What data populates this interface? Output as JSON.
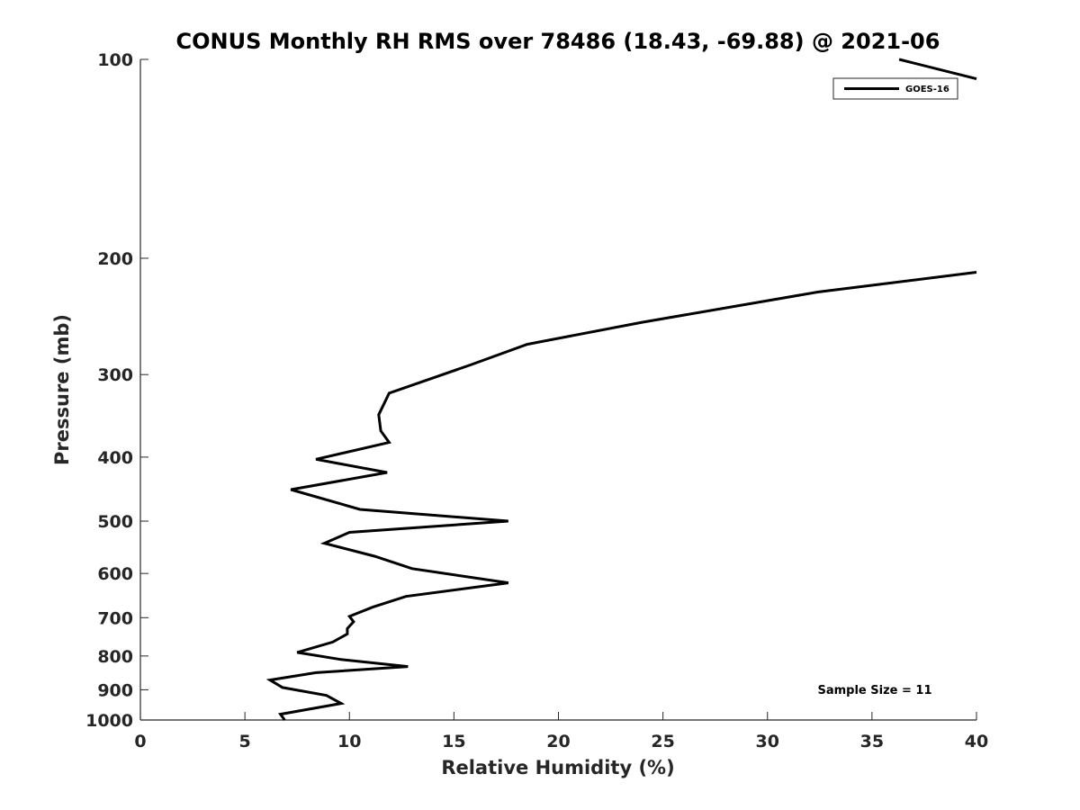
{
  "chart_data": {
    "type": "line",
    "title": "CONUS Monthly RH RMS over 78486 (18.43, -69.88) @ 2021-06",
    "xlabel": "Relative Humidity (%)",
    "ylabel": "Pressure (mb)",
    "xlim": [
      0,
      40
    ],
    "ylim": [
      100,
      1000
    ],
    "y_scale": "log",
    "y_reversed": true,
    "x_ticks": [
      "0",
      "5",
      "10",
      "15",
      "20",
      "25",
      "30",
      "35",
      "40"
    ],
    "y_ticks": [
      "100",
      "200",
      "300",
      "400",
      "500",
      "600",
      "700",
      "800",
      "900",
      "1000"
    ],
    "grid": false,
    "legend": {
      "placement": "top-right",
      "entries": [
        "GOES-16"
      ]
    },
    "annotation": "Sample Size = 11",
    "series": [
      {
        "name": "GOES-16",
        "color": "#000000",
        "segments": [
          {
            "x": [
              36.3,
              40.0
            ],
            "y": [
              100,
              107
            ]
          },
          {
            "x": [
              40.0,
              32.4,
              24.0,
              18.5,
              15.8,
              11.9,
              11.4,
              11.5,
              11.9,
              8.4,
              11.8,
              7.2,
              10.5,
              17.6,
              10.0,
              8.8,
              11.2,
              13.0,
              17.6,
              12.7,
              11.1,
              10.0,
              10.2,
              9.9,
              9.9,
              9.2,
              7.5,
              9.6,
              12.8,
              8.4,
              6.2,
              6.8,
              8.9,
              9.6,
              6.7,
              6.9
            ],
            "y": [
              210,
              225,
              250,
              270,
              290,
              320,
              345,
              365,
              380,
              403,
              422,
              448,
              480,
              500,
              520,
              540,
              565,
              590,
              620,
              650,
              675,
              697,
              710,
              727,
              741,
              762,
              790,
              810,
              830,
              848,
              870,
              893,
              918,
              944,
              980,
              1000
            ]
          }
        ]
      }
    ]
  }
}
